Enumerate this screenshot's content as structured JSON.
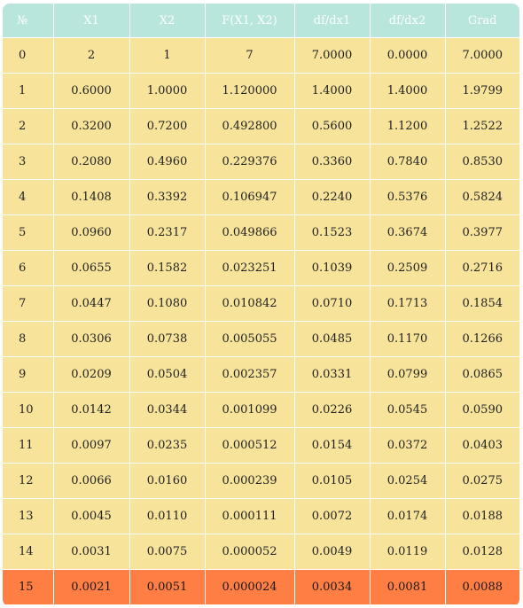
{
  "colors": {
    "header_bg": "#b8e6dc",
    "row_bg": "#f7e39a",
    "highlight_row_bg": "#ff7e44"
  },
  "table": {
    "headers": [
      "№",
      "X1",
      "X2",
      "F(X1, X2)",
      "df/dx1",
      "df/dx2",
      "Grad"
    ],
    "rows": [
      [
        "0",
        "2",
        "1",
        "7",
        "7.0000",
        "0.0000",
        "7.0000"
      ],
      [
        "1",
        "0.6000",
        "1.0000",
        "1.120000",
        "1.4000",
        "1.4000",
        "1.9799"
      ],
      [
        "2",
        "0.3200",
        "0.7200",
        "0.492800",
        "0.5600",
        "1.1200",
        "1.2522"
      ],
      [
        "3",
        "0.2080",
        "0.4960",
        "0.229376",
        "0.3360",
        "0.7840",
        "0.8530"
      ],
      [
        "4",
        "0.1408",
        "0.3392",
        "0.106947",
        "0.2240",
        "0.5376",
        "0.5824"
      ],
      [
        "5",
        "0.0960",
        "0.2317",
        "0.049866",
        "0.1523",
        "0.3674",
        "0.3977"
      ],
      [
        "6",
        "0.0655",
        "0.1582",
        "0.023251",
        "0.1039",
        "0.2509",
        "0.2716"
      ],
      [
        "7",
        "0.0447",
        "0.1080",
        "0.010842",
        "0.0710",
        "0.1713",
        "0.1854"
      ],
      [
        "8",
        "0.0306",
        "0.0738",
        "0.005055",
        "0.0485",
        "0.1170",
        "0.1266"
      ],
      [
        "9",
        "0.0209",
        "0.0504",
        "0.002357",
        "0.0331",
        "0.0799",
        "0.0865"
      ],
      [
        "10",
        "0.0142",
        "0.0344",
        "0.001099",
        "0.0226",
        "0.0545",
        "0.0590"
      ],
      [
        "11",
        "0.0097",
        "0.0235",
        "0.000512",
        "0.0154",
        "0.0372",
        "0.0403"
      ],
      [
        "12",
        "0.0066",
        "0.0160",
        "0.000239",
        "0.0105",
        "0.0254",
        "0.0275"
      ],
      [
        "13",
        "0.0045",
        "0.0110",
        "0.000111",
        "0.0072",
        "0.0174",
        "0.0188"
      ],
      [
        "14",
        "0.0031",
        "0.0075",
        "0.000052",
        "0.0049",
        "0.0119",
        "0.0128"
      ],
      [
        "15",
        "0.0021",
        "0.0051",
        "0.000024",
        "0.0034",
        "0.0081",
        "0.0088"
      ]
    ],
    "highlighted_row_index": 15
  }
}
